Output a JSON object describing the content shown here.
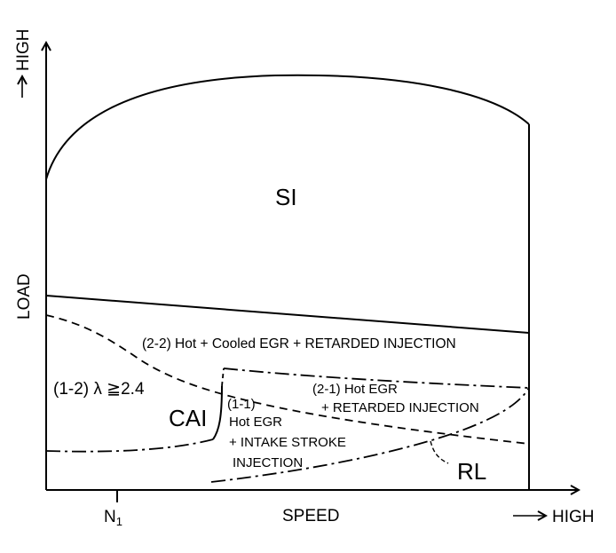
{
  "axes": {
    "y_label": "LOAD",
    "y_high_label": "HIGH",
    "x_label": "SPEED",
    "x_high_label": "HIGH",
    "x_tick_main": "N",
    "x_tick_sub": "1"
  },
  "regions": {
    "si": "SI",
    "r22": "(2-2) Hot + Cooled EGR + RETARDED INJECTION",
    "r12": "(1-2) λ ≧2.4",
    "cai": "CAI",
    "r11_title": "(1-1)",
    "r11_line1": "Hot EGR",
    "r11_line2": "+ INTAKE STROKE",
    "r11_line3": "INJECTION",
    "r21_title": "(2-1) Hot EGR",
    "r21_line1": "+ RETARDED INJECTION",
    "rl": "RL"
  },
  "colors": {
    "line": "#000000",
    "background": "#ffffff"
  }
}
